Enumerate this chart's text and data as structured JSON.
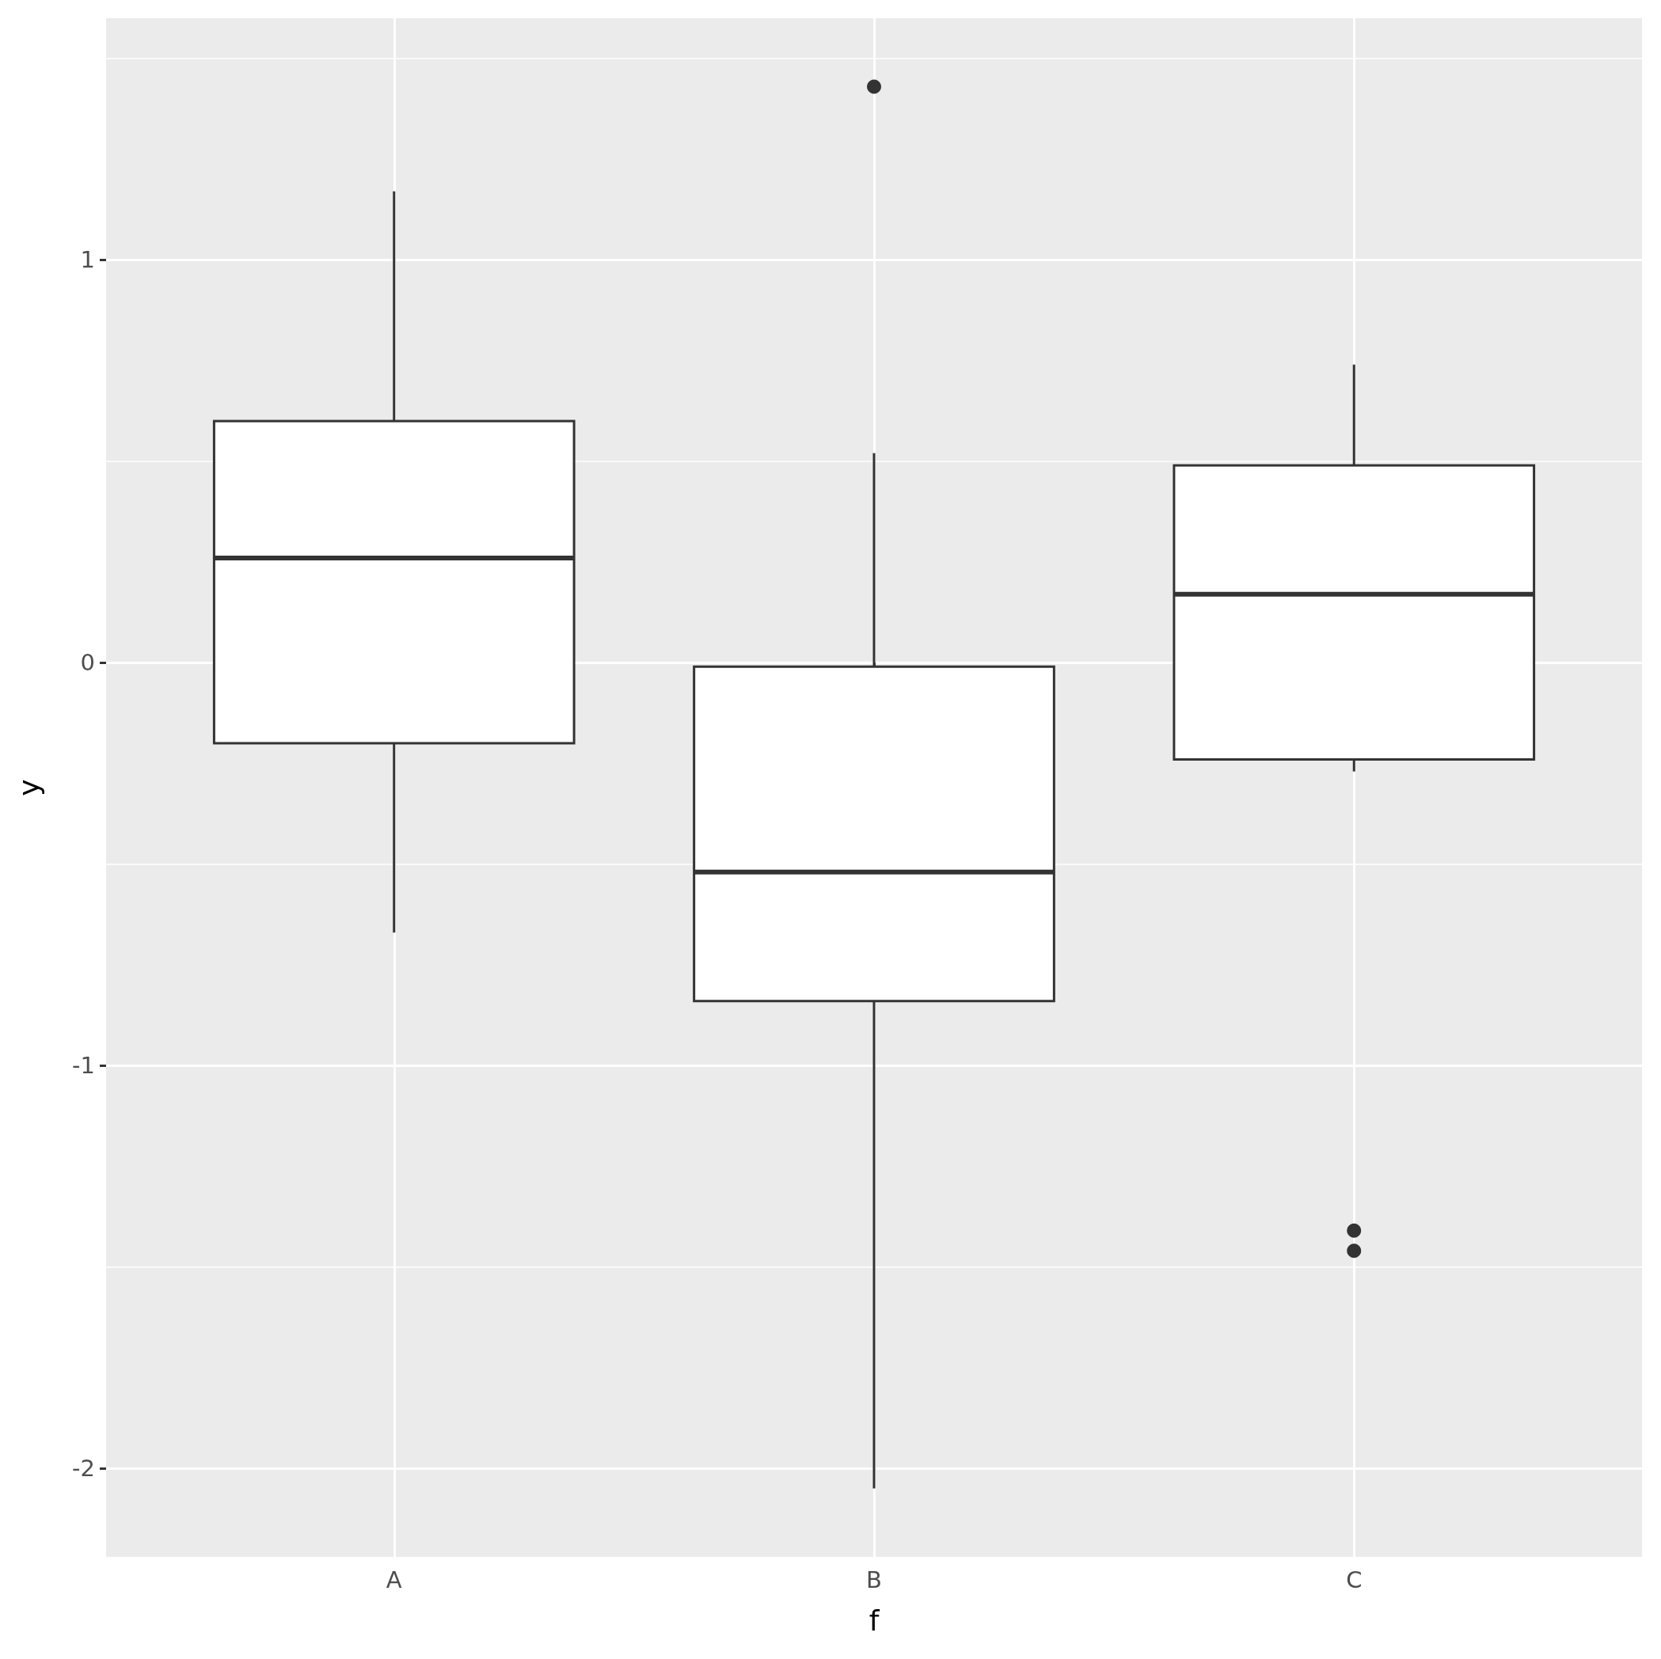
{
  "chart_data": {
    "type": "box",
    "xlabel": "f",
    "ylabel": "y",
    "categories": [
      "A",
      "B",
      "C"
    ],
    "boxes": [
      {
        "low": -0.67,
        "q1": -0.2,
        "median": 0.26,
        "q3": 0.6,
        "high": 1.17
      },
      {
        "low": -2.05,
        "q1": -0.84,
        "median": -0.52,
        "q3": -0.01,
        "high": 0.52,
        "outliers": [
          1.43
        ]
      },
      {
        "low": -0.27,
        "q1": -0.24,
        "median": 0.17,
        "q3": 0.49,
        "high": 0.74,
        "outliers": [
          -1.41,
          -1.46
        ]
      }
    ],
    "color": "#333333",
    "ylim": [
      -2.22,
      1.6
    ],
    "yticks": [
      -2,
      -1,
      0,
      1
    ],
    "grid": true
  }
}
